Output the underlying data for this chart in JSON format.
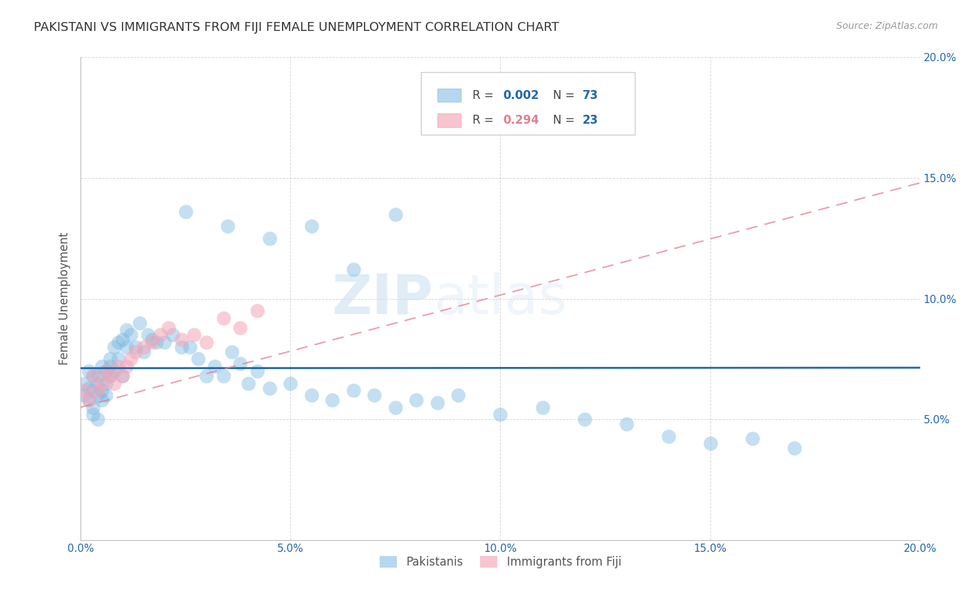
{
  "title": "PAKISTANI VS IMMIGRANTS FROM FIJI FEMALE UNEMPLOYMENT CORRELATION CHART",
  "source": "Source: ZipAtlas.com",
  "ylabel": "Female Unemployment",
  "xlim": [
    0.0,
    0.2
  ],
  "ylim": [
    0.0,
    0.2
  ],
  "xtick_vals": [
    0.0,
    0.05,
    0.1,
    0.15,
    0.2
  ],
  "ytick_vals": [
    0.05,
    0.1,
    0.15,
    0.2
  ],
  "xticklabels": [
    "0.0%",
    "5.0%",
    "10.0%",
    "15.0%",
    "20.0%"
  ],
  "yticklabels": [
    "5.0%",
    "10.0%",
    "15.0%",
    "20.0%"
  ],
  "pakistani_color": "#7ab8e0",
  "fiji_color": "#f4a5b8",
  "watermark_zip": "ZIP",
  "watermark_atlas": "atlas",
  "pakistani_N": 73,
  "fiji_N": 23,
  "pakistani_R": "0.002",
  "fiji_R": "0.294",
  "pak_line_color": "#2166ac",
  "fiji_line_color": "#e08090",
  "legend_R_color": "#2166ac",
  "legend_N_color": "#2166ac",
  "legend_R2_color": "#e08090",
  "legend_N2_color": "#2166ac",
  "pakistani_x": [
    0.001,
    0.001,
    0.002,
    0.002,
    0.002,
    0.003,
    0.003,
    0.003,
    0.003,
    0.004,
    0.004,
    0.004,
    0.004,
    0.005,
    0.005,
    0.005,
    0.006,
    0.006,
    0.006,
    0.007,
    0.007,
    0.007,
    0.008,
    0.008,
    0.009,
    0.009,
    0.01,
    0.01,
    0.011,
    0.011,
    0.012,
    0.013,
    0.014,
    0.015,
    0.016,
    0.017,
    0.018,
    0.02,
    0.022,
    0.024,
    0.026,
    0.028,
    0.03,
    0.032,
    0.034,
    0.036,
    0.038,
    0.04,
    0.042,
    0.045,
    0.05,
    0.055,
    0.06,
    0.065,
    0.07,
    0.075,
    0.08,
    0.085,
    0.09,
    0.1,
    0.11,
    0.12,
    0.13,
    0.14,
    0.15,
    0.16,
    0.17,
    0.025,
    0.035,
    0.045,
    0.055,
    0.065,
    0.075
  ],
  "pakistani_y": [
    0.065,
    0.06,
    0.063,
    0.058,
    0.07,
    0.062,
    0.068,
    0.055,
    0.052,
    0.068,
    0.065,
    0.06,
    0.05,
    0.062,
    0.058,
    0.072,
    0.065,
    0.07,
    0.06,
    0.068,
    0.075,
    0.072,
    0.08,
    0.07,
    0.082,
    0.075,
    0.083,
    0.068,
    0.087,
    0.08,
    0.085,
    0.08,
    0.09,
    0.078,
    0.085,
    0.083,
    0.082,
    0.082,
    0.085,
    0.08,
    0.08,
    0.075,
    0.068,
    0.072,
    0.068,
    0.078,
    0.073,
    0.065,
    0.07,
    0.063,
    0.065,
    0.06,
    0.058,
    0.062,
    0.06,
    0.055,
    0.058,
    0.057,
    0.06,
    0.052,
    0.055,
    0.05,
    0.048,
    0.043,
    0.04,
    0.042,
    0.038,
    0.136,
    0.13,
    0.125,
    0.13,
    0.112,
    0.135
  ],
  "fiji_x": [
    0.001,
    0.002,
    0.003,
    0.004,
    0.005,
    0.006,
    0.007,
    0.008,
    0.009,
    0.01,
    0.011,
    0.012,
    0.013,
    0.015,
    0.017,
    0.019,
    0.021,
    0.024,
    0.027,
    0.03,
    0.034,
    0.038,
    0.042
  ],
  "fiji_y": [
    0.062,
    0.058,
    0.068,
    0.062,
    0.065,
    0.07,
    0.068,
    0.065,
    0.072,
    0.068,
    0.072,
    0.075,
    0.078,
    0.08,
    0.082,
    0.085,
    0.088,
    0.083,
    0.085,
    0.082,
    0.092,
    0.088,
    0.095
  ],
  "pak_line_y0": 0.0712,
  "pak_line_y1": 0.0714,
  "fiji_line_y0": 0.055,
  "fiji_line_y1": 0.148
}
